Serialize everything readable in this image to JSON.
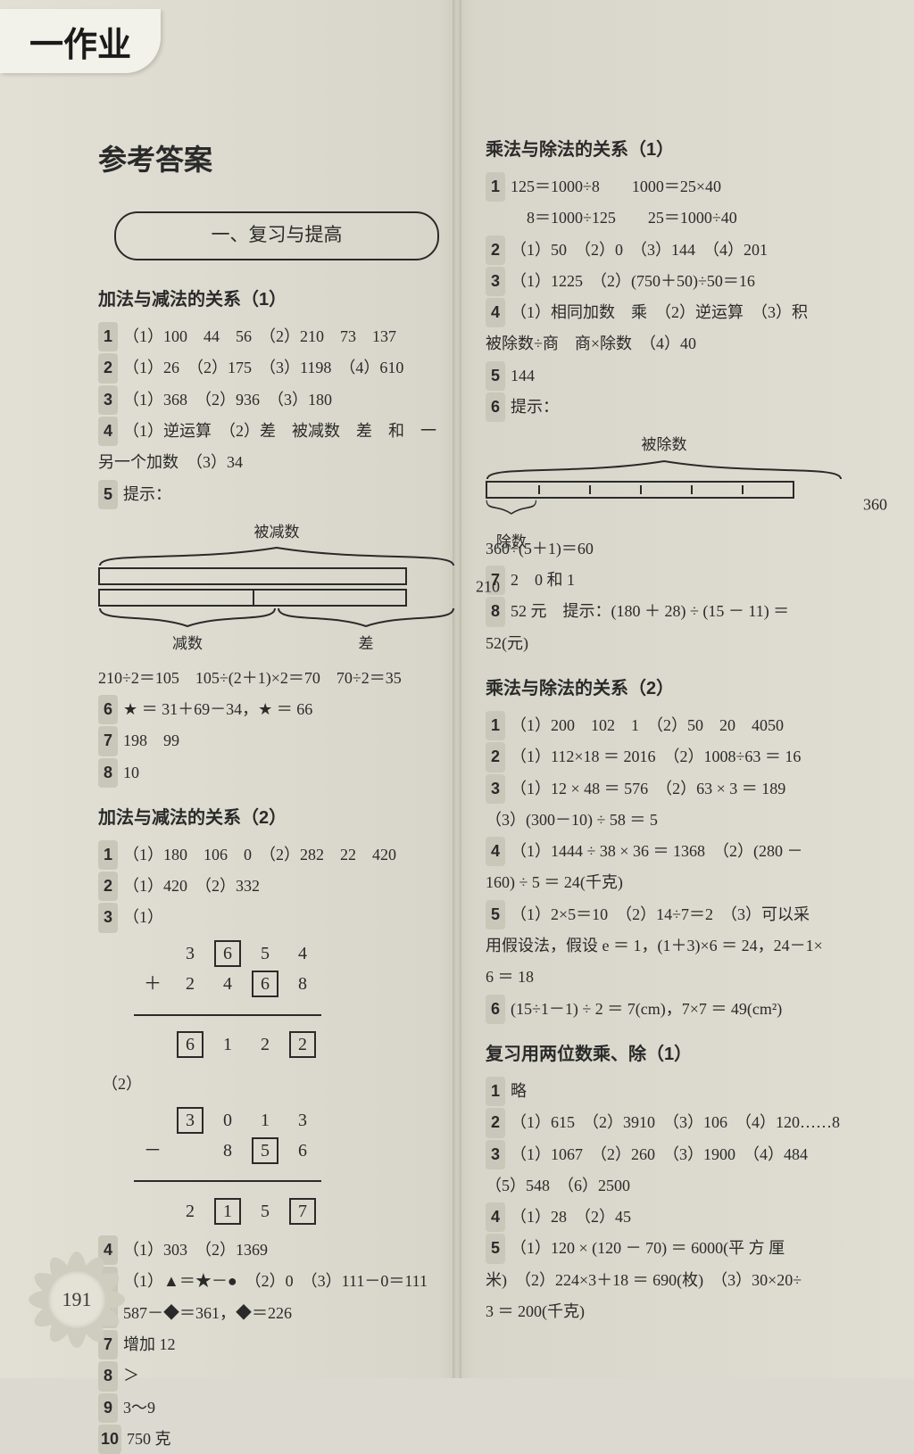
{
  "page": {
    "tab": "一作业",
    "main_title": "参考答案",
    "chapter_pill": "一、复习与提高",
    "page_number": "191",
    "background_color": "#dcdad0",
    "text_color": "#2a2a2a",
    "pill_border_color": "#2a2a2a"
  },
  "left": {
    "sec1": {
      "title": "加法与减法的关系（1）",
      "l1": "（1）100　44　56　（2）210　73　137",
      "l2": "（1）26　（2）175　（3）1198　（4）610",
      "l3": "（1）368　（2）936　（3）180",
      "l4a": "（1）逆运算　（2）差　被减数　差　和　一",
      "l4b": "另一个加数　（3）34",
      "l5": "提示：",
      "diagram": {
        "top_label": "被减数",
        "side_label": "210",
        "bottom_left": "减数",
        "bottom_right": "差",
        "tick_positions_pct": [
          50
        ],
        "bar_color": "#2a2a2a"
      },
      "eq": "210÷2＝105　105÷(2＋1)×2＝70　70÷2＝35",
      "l6": "★ ＝ 31＋69－34，★ ＝ 66",
      "l7": "198　99",
      "l8": "10"
    },
    "sec2": {
      "title": "加法与减法的关系（2）",
      "l1": "（1）180　106　0　（2）282　22　420",
      "l2": "（1）420　（2）332",
      "l3_label": "（1）",
      "add": {
        "row1": [
          "",
          "3",
          "6",
          "5",
          "4"
        ],
        "row2": [
          "＋",
          "2",
          "4",
          "6",
          "8"
        ],
        "row3": [
          "",
          "6",
          "1",
          "2",
          "2"
        ],
        "boxes_row1": [
          false,
          false,
          true,
          false,
          false
        ],
        "boxes_row2": [
          false,
          false,
          false,
          true,
          false
        ],
        "boxes_row3": [
          false,
          true,
          false,
          false,
          true
        ]
      },
      "sub_label": "（2）",
      "sub": {
        "row1": [
          "",
          "3",
          "0",
          "1",
          "3"
        ],
        "row2": [
          "－",
          "",
          "8",
          "5",
          "6"
        ],
        "row3": [
          "",
          "2",
          "1",
          "5",
          "7"
        ],
        "boxes_row1": [
          false,
          true,
          false,
          false,
          false
        ],
        "boxes_row2": [
          false,
          false,
          false,
          true,
          false
        ],
        "boxes_row3": [
          false,
          false,
          true,
          false,
          true
        ]
      },
      "l4": "（1）303　（2）1369",
      "l5": "（1）▲＝★－●　（2）0　（3）111－0＝111",
      "l6": "587－◆＝361，◆＝226",
      "l7": "增加 12",
      "l8": "＞",
      "l9": "3～9",
      "l10": "750 克"
    }
  },
  "right": {
    "sec1": {
      "title": "乘法与除法的关系（1）",
      "l1a": "125＝1000÷8　　1000＝25×40",
      "l1b": "　8＝1000÷125　　25＝1000÷40",
      "l2": "（1）50　（2）0　（3）144　（4）201",
      "l3": "（1）1225　（2）(750＋50)÷50＝16",
      "l4a": "（1）相同加数　乘　（2）逆运算　（3）积",
      "l4b": "被除数÷商　商×除数　（4）40",
      "l5": "144",
      "l6": "提示：",
      "diagram": {
        "top_label": "被除数",
        "side_label": "360",
        "bottom_label": "除数",
        "tick_count": 5,
        "divisor_span_pct": 16.67,
        "bar_color": "#2a2a2a"
      },
      "eq": "360÷(5＋1)＝60",
      "l7": "2　0 和 1",
      "l8a": "52 元　提示：(180 ＋ 28) ÷ (15 － 11) ＝",
      "l8b": "52(元)"
    },
    "sec2": {
      "title": "乘法与除法的关系（2）",
      "l1": "（1）200　102　1　（2）50　20　4050",
      "l2": "（1）112×18 ＝ 2016　（2）1008÷63 ＝ 16",
      "l3a": "（1）12 × 48 ＝ 576　（2）63 × 3 ＝ 189",
      "l3b": "（3）(300－10) ÷ 58 ＝ 5",
      "l4a": "（1）1444 ÷ 38 × 36 ＝ 1368　（2）(280 －",
      "l4b": "160) ÷ 5 ＝ 24(千克)",
      "l5a": "（1）2×5＝10　（2）14÷7＝2　（3）可以采",
      "l5b": "用假设法，假设 e ＝ 1，(1＋3)×6 ＝ 24，24－1×",
      "l5c": "6 ＝ 18",
      "l6": "(15÷1－1) ÷ 2 ＝ 7(cm)，7×7 ＝ 49(cm²)"
    },
    "sec3": {
      "title": "复习用两位数乘、除（1）",
      "l1": "略",
      "l2": "（1）615　（2）3910　（3）106　（4）120……8",
      "l3a": "（1）1067　（2）260　（3）1900　（4）484",
      "l3b": "（5）548　（6）2500",
      "l4": "（1）28　（2）45",
      "l5a": "（1）120 × (120 － 70) ＝ 6000(平 方 厘",
      "l5b": "米)　（2）224×3＋18 ＝ 690(枚)　（3）30×20÷",
      "l5c": "3 ＝ 200(千克)"
    }
  }
}
